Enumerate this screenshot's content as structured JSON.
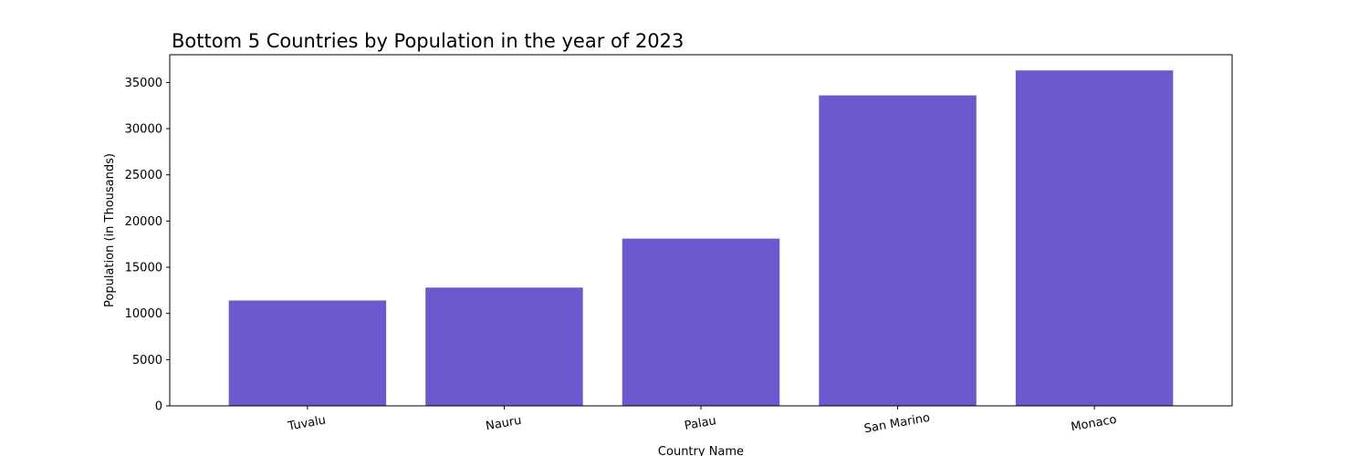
{
  "chart_data": {
    "type": "bar",
    "title": "Bottom 5 Countries by Population in the year of 2023",
    "xlabel": "Country Name",
    "ylabel": "Population (in Thousands)",
    "categories": [
      "Tuvalu",
      "Nauru",
      "Palau",
      "San Marino",
      "Monaco"
    ],
    "values": [
      11400,
      12800,
      18100,
      33600,
      36300
    ],
    "ylim": [
      0,
      38000
    ],
    "yticks": [
      0,
      5000,
      10000,
      15000,
      20000,
      25000,
      30000,
      35000
    ],
    "bar_color": "#6a5acd",
    "grid": false,
    "legend": "none"
  }
}
